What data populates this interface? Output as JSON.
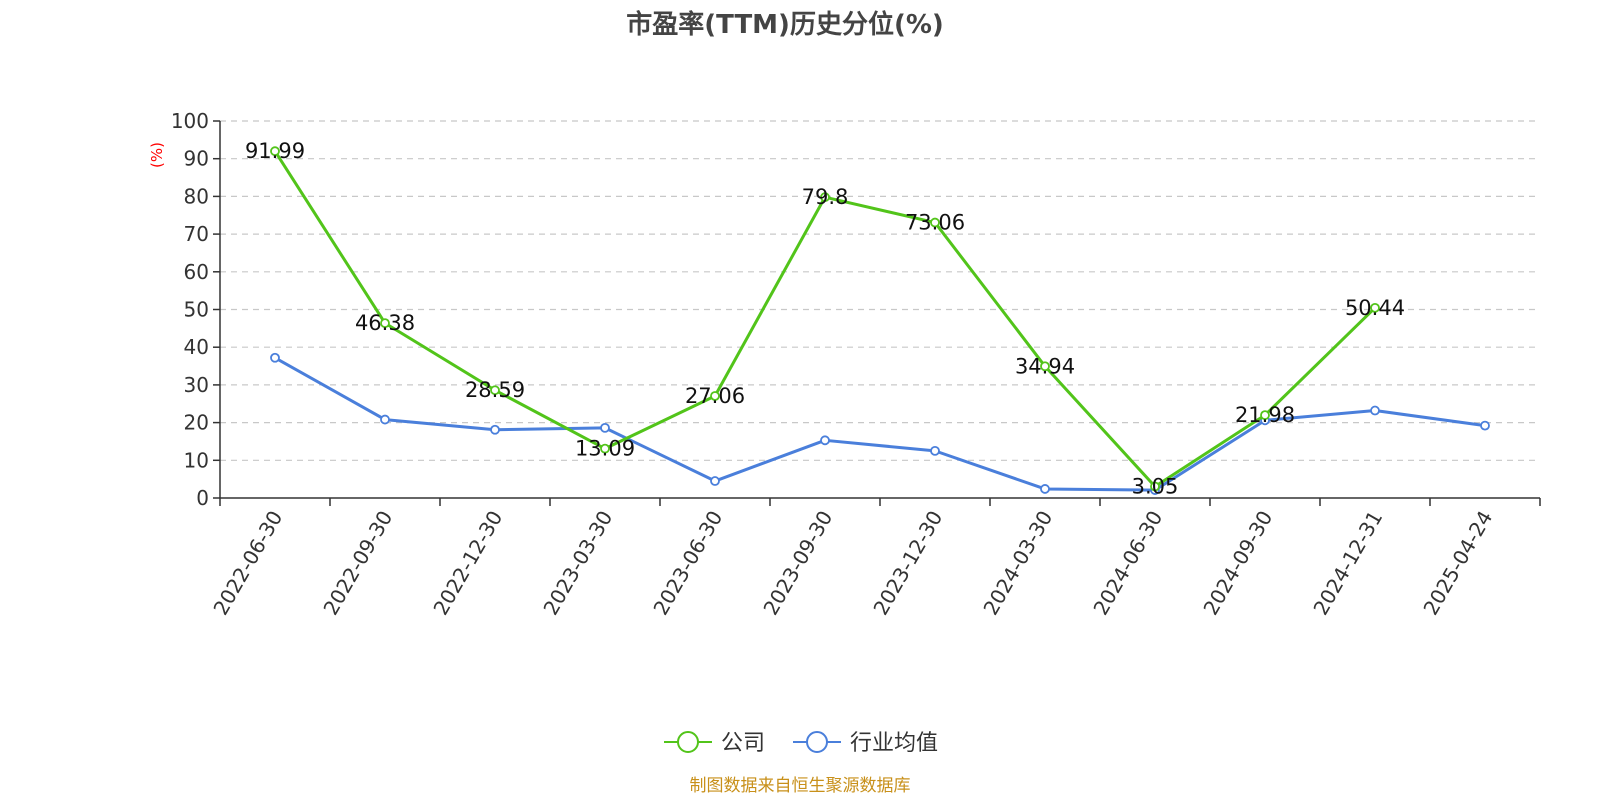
{
  "chart_data": {
    "type": "line",
    "title": "市盈率(TTM)历史分位(%)",
    "y_unit": "(%)",
    "ylim": [
      0,
      100
    ],
    "y_ticks": [
      0,
      10,
      20,
      30,
      40,
      50,
      60,
      70,
      80,
      90,
      100
    ],
    "grid": true,
    "legend_position": "bottom",
    "categories": [
      "2022-06-30",
      "2022-09-30",
      "2022-12-30",
      "2023-03-30",
      "2023-06-30",
      "2023-09-30",
      "2023-12-30",
      "2024-03-30",
      "2024-06-30",
      "2024-09-30",
      "2024-12-31",
      "2025-04-24"
    ],
    "series": [
      {
        "name": "公司",
        "color": "#52c41a",
        "values": [
          91.99,
          46.38,
          28.59,
          13.09,
          27.06,
          79.8,
          73.06,
          34.94,
          3.05,
          21.98,
          50.44,
          null
        ],
        "labels": [
          "91.99",
          "46.38",
          "28.59",
          "13.09",
          "27.06",
          "79.8",
          "73.06",
          "34.94",
          "3.05",
          "21.98",
          "50.44",
          null
        ]
      },
      {
        "name": "行业均值",
        "color": "#4a7fdb",
        "values": [
          37.2,
          20.8,
          18.1,
          18.6,
          4.5,
          15.3,
          12.5,
          2.4,
          2.1,
          20.6,
          23.2,
          19.2
        ]
      }
    ]
  },
  "source_text": "制图数据来自恒生聚源数据库"
}
